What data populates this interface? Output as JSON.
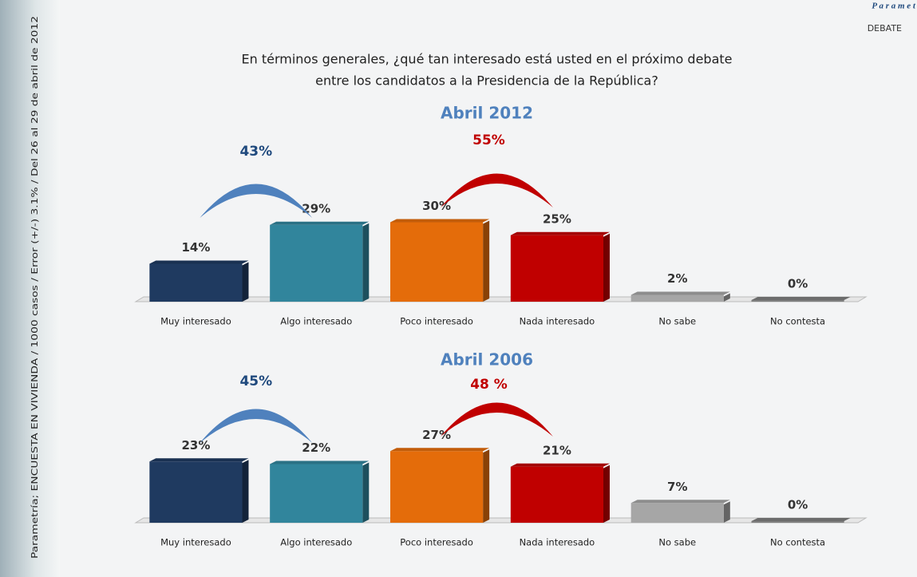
{
  "brand": "P a r a m e t",
  "section": "DEBATE",
  "question": [
    "En términos generales, ¿qué tan interesado está usted en el próximo debate",
    "entre los candidatos a la Presidencia de la República?"
  ],
  "side_note": "Parametría; ENCUESTA EN VIVIENDA / 1000 casos / Error (+/-) 3.1% / Del 26 al 29 de abril de 2012",
  "chart_data": [
    {
      "type": "bar",
      "title": "Abril 2012",
      "categories": [
        "Muy interesado",
        "Algo interesado",
        "Poco interesado",
        "Nada interesado",
        "No sabe",
        "No contesta"
      ],
      "values": [
        14,
        29,
        30,
        25,
        2,
        0
      ],
      "value_labels": [
        "14%",
        "29%",
        "30%",
        "25%",
        "2%",
        "0%"
      ],
      "colors": [
        "#1f3a60",
        "#31859c",
        "#e46c0a",
        "#c00000",
        "#a6a6a6",
        "#7f7f7f"
      ],
      "annotations": [
        {
          "value": 43,
          "label": "43%",
          "color": "#4f81bd"
        },
        {
          "value": 55,
          "label": "55%",
          "color": "#c00000"
        }
      ]
    },
    {
      "type": "bar",
      "title": "Abril 2006",
      "categories": [
        "Muy interesado",
        "Algo interesado",
        "Poco interesado",
        "Nada interesado",
        "No sabe",
        "No contesta"
      ],
      "values": [
        23,
        22,
        27,
        21,
        7,
        0
      ],
      "value_labels": [
        "23%",
        "22%",
        "27%",
        "21%",
        "7%",
        "0%"
      ],
      "colors": [
        "#1f3a60",
        "#31859c",
        "#e46c0a",
        "#c00000",
        "#a6a6a6",
        "#7f7f7f"
      ],
      "annotations": [
        {
          "value": 45,
          "label": "45%",
          "color": "#4f81bd"
        },
        {
          "value": 48,
          "label": "48 %",
          "color": "#c00000"
        }
      ]
    }
  ]
}
